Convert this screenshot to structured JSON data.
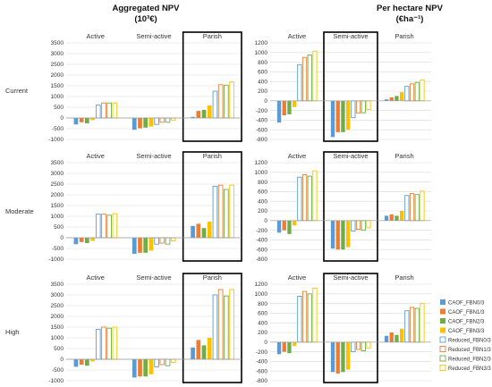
{
  "figure": {
    "title_left_line1": "Aggregated NPV",
    "title_left_line2": "(10³€)",
    "title_right_line1": "Per hectare NPV",
    "title_right_line2": "(€ha⁻¹)"
  },
  "colors": {
    "CAOF_FBN0/3": "#5b9bd5",
    "CAOF_FBN1/3": "#ed7d31",
    "CAOF_FBN2/3": "#70ad47",
    "CAOF_FBN3/3": "#ffc000",
    "Reduced_FBN0/3": "#5b9bd5",
    "Reduced_FBN1/3": "#ed7d31",
    "Reduced_FBN2/3": "#70ad47",
    "Reduced_FBN3/3": "#ffc000",
    "grid": "#d9d9d9",
    "highlight_box": "#000000"
  },
  "legend": [
    {
      "name": "CAOF_FBN0/3",
      "style": "filled"
    },
    {
      "name": "CAOF_FBN1/3",
      "style": "filled"
    },
    {
      "name": "CAOF_FBN2/3",
      "style": "filled"
    },
    {
      "name": "CAOF_FBN3/3",
      "style": "filled"
    },
    {
      "name": "Reduced_FBN0/3",
      "style": "outline"
    },
    {
      "name": "Reduced_FBN1/3",
      "style": "outline"
    },
    {
      "name": "Reduced_FBN2/3",
      "style": "outline"
    },
    {
      "name": "Reduced_FBN3/3",
      "style": "outline"
    }
  ],
  "chart_data": [
    {
      "type": "bar",
      "row": "Current",
      "column": "Aggregated NPV",
      "groups": [
        "Active",
        "Semi-active",
        "Parish"
      ],
      "ylim": [
        -1000,
        3500
      ],
      "yticks": [
        -1000,
        -500,
        0,
        500,
        1000,
        1500,
        2000,
        2500,
        3000,
        3500
      ],
      "highlight": "Parish",
      "series": [
        {
          "name": "CAOF_FBN0/3",
          "values": [
            -300,
            -550,
            50
          ]
        },
        {
          "name": "CAOF_FBN1/3",
          "values": [
            -200,
            -480,
            330
          ]
        },
        {
          "name": "CAOF_FBN2/3",
          "values": [
            -250,
            -450,
            380
          ]
        },
        {
          "name": "CAOF_FBN3/3",
          "values": [
            -100,
            -400,
            580
          ]
        },
        {
          "name": "Reduced_FBN0/3",
          "values": [
            600,
            -300,
            1250
          ]
        },
        {
          "name": "Reduced_FBN1/3",
          "values": [
            700,
            -200,
            1550
          ]
        },
        {
          "name": "Reduced_FBN2/3",
          "values": [
            700,
            -200,
            1530
          ]
        },
        {
          "name": "Reduced_FBN3/3",
          "values": [
            700,
            -100,
            1680
          ]
        }
      ]
    },
    {
      "type": "bar",
      "row": "Current",
      "column": "Per hectare NPV",
      "groups": [
        "Active",
        "Semi-active",
        "Parish"
      ],
      "ylim": [
        -800,
        1200
      ],
      "yticks": [
        -800,
        -600,
        -400,
        -200,
        0,
        200,
        400,
        600,
        800,
        1000,
        1200
      ],
      "highlight": "Semi-active",
      "series": [
        {
          "name": "CAOF_FBN0/3",
          "values": [
            -450,
            -750,
            30
          ]
        },
        {
          "name": "CAOF_FBN1/3",
          "values": [
            -300,
            -650,
            70
          ]
        },
        {
          "name": "CAOF_FBN2/3",
          "values": [
            -280,
            -650,
            100
          ]
        },
        {
          "name": "CAOF_FBN3/3",
          "values": [
            -130,
            -600,
            180
          ]
        },
        {
          "name": "Reduced_FBN0/3",
          "values": [
            750,
            -350,
            300
          ]
        },
        {
          "name": "Reduced_FBN1/3",
          "values": [
            900,
            -250,
            350
          ]
        },
        {
          "name": "Reduced_FBN2/3",
          "values": [
            950,
            -250,
            380
          ]
        },
        {
          "name": "Reduced_FBN3/3",
          "values": [
            1030,
            -180,
            430
          ]
        }
      ]
    },
    {
      "type": "bar",
      "row": "Moderate",
      "column": "Aggregated NPV",
      "groups": [
        "Active",
        "Semi-active",
        "Parish"
      ],
      "ylim": [
        -1000,
        3500
      ],
      "yticks": [
        -1000,
        -500,
        0,
        500,
        1000,
        1500,
        2000,
        2500,
        3000,
        3500
      ],
      "highlight": "Parish",
      "series": [
        {
          "name": "CAOF_FBN0/3",
          "values": [
            -300,
            -750,
            550
          ]
        },
        {
          "name": "CAOF_FBN1/3",
          "values": [
            -200,
            -700,
            650
          ]
        },
        {
          "name": "CAOF_FBN2/3",
          "values": [
            -250,
            -700,
            450
          ]
        },
        {
          "name": "CAOF_FBN3/3",
          "values": [
            -150,
            -600,
            750
          ]
        },
        {
          "name": "Reduced_FBN0/3",
          "values": [
            1100,
            -300,
            2400
          ]
        },
        {
          "name": "Reduced_FBN1/3",
          "values": [
            1100,
            -250,
            2450
          ]
        },
        {
          "name": "Reduced_FBN2/3",
          "values": [
            1050,
            -300,
            2250
          ]
        },
        {
          "name": "Reduced_FBN3/3",
          "values": [
            1120,
            -150,
            2450
          ]
        }
      ]
    },
    {
      "type": "bar",
      "row": "Moderate",
      "column": "Per hectare NPV",
      "groups": [
        "Active",
        "Semi-active",
        "Parish"
      ],
      "ylim": [
        -800,
        1200
      ],
      "yticks": [
        -800,
        -600,
        -400,
        -200,
        0,
        200,
        400,
        600,
        800,
        1000,
        1200
      ],
      "highlight": "Semi-active",
      "series": [
        {
          "name": "CAOF_FBN0/3",
          "values": [
            -250,
            -580,
            100
          ]
        },
        {
          "name": "CAOF_FBN1/3",
          "values": [
            -200,
            -600,
            130
          ]
        },
        {
          "name": "CAOF_FBN2/3",
          "values": [
            -280,
            -600,
            100
          ]
        },
        {
          "name": "CAOF_FBN3/3",
          "values": [
            -100,
            -550,
            200
          ]
        },
        {
          "name": "Reduced_FBN0/3",
          "values": [
            900,
            -220,
            520
          ]
        },
        {
          "name": "Reduced_FBN1/3",
          "values": [
            950,
            -180,
            560
          ]
        },
        {
          "name": "Reduced_FBN2/3",
          "values": [
            920,
            -200,
            540
          ]
        },
        {
          "name": "Reduced_FBN3/3",
          "values": [
            1030,
            -150,
            610
          ]
        }
      ]
    },
    {
      "type": "bar",
      "row": "High",
      "column": "Aggregated NPV",
      "groups": [
        "Active",
        "Semi-active",
        "Parish"
      ],
      "ylim": [
        -1000,
        3500
      ],
      "yticks": [
        -1000,
        -500,
        0,
        500,
        1000,
        1500,
        2000,
        2500,
        3000,
        3500
      ],
      "highlight": "Parish",
      "series": [
        {
          "name": "CAOF_FBN0/3",
          "values": [
            -350,
            -850,
            550
          ]
        },
        {
          "name": "CAOF_FBN1/3",
          "values": [
            -250,
            -800,
            900
          ]
        },
        {
          "name": "CAOF_FBN2/3",
          "values": [
            -300,
            -800,
            650
          ]
        },
        {
          "name": "CAOF_FBN3/3",
          "values": [
            -100,
            -700,
            1000
          ]
        },
        {
          "name": "Reduced_FBN0/3",
          "values": [
            1400,
            -350,
            3000
          ]
        },
        {
          "name": "Reduced_FBN1/3",
          "values": [
            1500,
            -250,
            3250
          ]
        },
        {
          "name": "Reduced_FBN2/3",
          "values": [
            1450,
            -300,
            2950
          ]
        },
        {
          "name": "Reduced_FBN3/3",
          "values": [
            1500,
            -150,
            3250
          ]
        }
      ]
    },
    {
      "type": "bar",
      "row": "High",
      "column": "Per hectare NPV",
      "groups": [
        "Active",
        "Semi-active",
        "Parish"
      ],
      "ylim": [
        -800,
        1200
      ],
      "yticks": [
        -800,
        -600,
        -400,
        -200,
        0,
        200,
        400,
        600,
        800,
        1000,
        1200
      ],
      "highlight": "Semi-active",
      "series": [
        {
          "name": "CAOF_FBN0/3",
          "values": [
            -250,
            -620,
            130
          ]
        },
        {
          "name": "CAOF_FBN1/3",
          "values": [
            -200,
            -650,
            200
          ]
        },
        {
          "name": "CAOF_FBN2/3",
          "values": [
            -230,
            -620,
            150
          ]
        },
        {
          "name": "CAOF_FBN3/3",
          "values": [
            -80,
            -570,
            280
          ]
        },
        {
          "name": "Reduced_FBN0/3",
          "values": [
            950,
            -200,
            650
          ]
        },
        {
          "name": "Reduced_FBN1/3",
          "values": [
            1050,
            -150,
            720
          ]
        },
        {
          "name": "Reduced_FBN2/3",
          "values": [
            1000,
            -180,
            700
          ]
        },
        {
          "name": "Reduced_FBN3/3",
          "values": [
            1120,
            -120,
            800
          ]
        }
      ]
    }
  ]
}
